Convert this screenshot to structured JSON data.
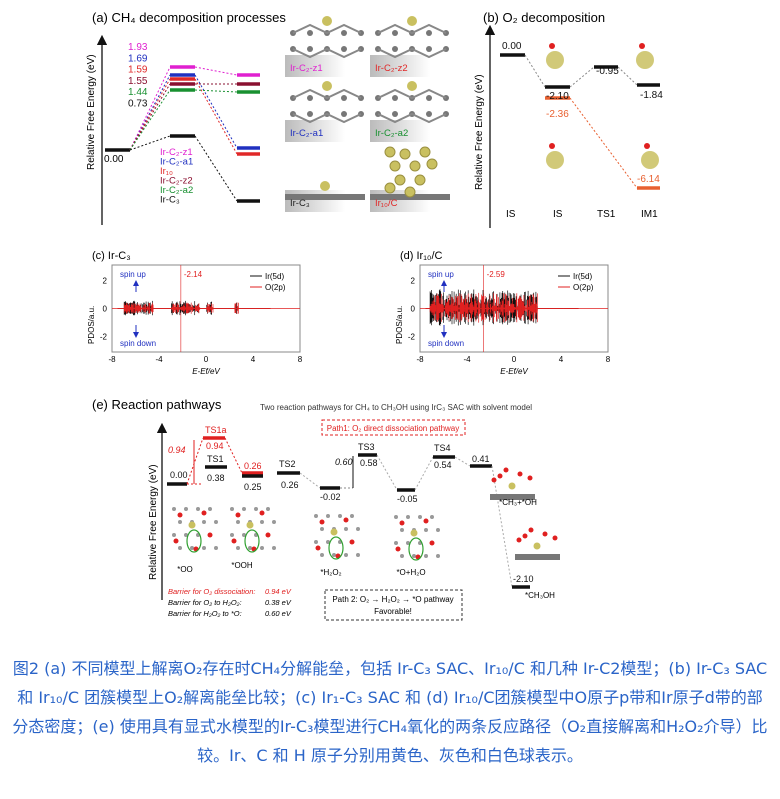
{
  "panel_a": {
    "title": "(a) CH₄ decomposition processes",
    "ylabel": "Relative Free Energy (eV)",
    "start_label": "0.00",
    "barriers": [
      {
        "value": "1.93",
        "color": "#e020d0"
      },
      {
        "value": "1.69",
        "color": "#2030c0"
      },
      {
        "value": "1.59",
        "color": "#e02828"
      },
      {
        "value": "1.55",
        "color": "#8a1030"
      },
      {
        "value": "1.44",
        "color": "#189030"
      },
      {
        "value": "0.73",
        "color": "#111111"
      }
    ],
    "legend": [
      {
        "label": "Ir-C₂-z1",
        "color": "#e020d0"
      },
      {
        "label": "Ir-C₂-a1",
        "color": "#2030c0"
      },
      {
        "label": "Ir₁₀",
        "color": "#e02828"
      },
      {
        "label": "Ir-C₂-z2",
        "color": "#8a1030"
      },
      {
        "label": "Ir-C₂-a2",
        "color": "#189030"
      },
      {
        "label": "Ir-C₃",
        "color": "#111111"
      }
    ],
    "structures": [
      {
        "label": "Ir-C₂-z1",
        "color": "#e020d0"
      },
      {
        "label": "Ir-C₂-z2",
        "color": "#e02828"
      },
      {
        "label": "Ir-C₂-a1",
        "color": "#2030c0"
      },
      {
        "label": "Ir-C₂-a2",
        "color": "#189030"
      },
      {
        "label": "Ir-C₃",
        "color": "#222222"
      },
      {
        "label": "Ir₁₀/C",
        "color": "#e02828"
      }
    ]
  },
  "panel_b": {
    "title": "(b) O₂ decomposition",
    "ylabel": "Relative Free Energy (eV)",
    "levels": [
      "0.00",
      "-2.10",
      "-2.36",
      "-0.95",
      "-1.84",
      "-6.14"
    ],
    "xlabels": [
      "IS",
      "IS",
      "TS1",
      "IM1"
    ]
  },
  "panel_c": {
    "title": "(c) Ir-C₃",
    "marker": "-2.14",
    "spin_up": "spin up",
    "spin_down": "spin down"
  },
  "panel_d": {
    "title": "(d) Ir₁₀/C",
    "marker": "-2.59",
    "spin_up": "spin up",
    "spin_down": "spin down"
  },
  "pdos_common": {
    "ylabel": "PDOS/a.u.",
    "xlabel": "E-Ef/eV",
    "xticks": [
      "-8",
      "-4",
      "0",
      "4",
      "8"
    ],
    "yticks": [
      "2",
      "0",
      "-2"
    ],
    "legend": [
      {
        "label": "Ir(5d)",
        "color": "#111111"
      },
      {
        "label": "O(2p)",
        "color": "#e02020"
      }
    ]
  },
  "panel_e": {
    "title": "(e) Reaction pathways",
    "subtitle": "Two reaction pathways for CH₄ to CH₃OH using IrC₃ SAC with solvent model",
    "path1": "Path1: O₂ direct dissociation pathway",
    "path2_line1": "Path 2: O₂ → H₂O₂ → *O pathway",
    "path2_line2": "Favorable!",
    "ylabel": "Relative Free Energy (eV)",
    "levels": {
      "start": "0.00",
      "ts1a_name": "TS1a",
      "ts1a": "0.94",
      "ts1a_barrier": "0.94",
      "ts1_name": "TS1",
      "ts1": "0.38",
      "ooh_red": "0.26",
      "ooh": "0.25",
      "ts2_name": "TS2",
      "ts2": "0.26",
      "h2o2": "-0.02",
      "ts3_name": "TS3",
      "ts3": "0.58",
      "ts3_barrier": "0.60",
      "o_h2o": "-0.05",
      "ts4_name": "TS4",
      "ts4": "0.54",
      "ch3_oh": "0.41",
      "ch3oh": "-2.10"
    },
    "species": [
      "*OO",
      "*OOH",
      "*H₂O₂",
      "*O+H₂O",
      "*CH₃+*OH",
      "*CH₃OH"
    ],
    "barriers": [
      {
        "label": "Barrier for O₂ dissociation:",
        "value": "0.94 eV",
        "color": "#e02020"
      },
      {
        "label": "Barrier for O₂ to H₂O₂:",
        "value": "0.38 eV",
        "color": "#222222"
      },
      {
        "label": "Barrier for H₂O₂ to *O:",
        "value": "0.60 eV",
        "color": "#222222"
      }
    ]
  },
  "caption": "图2 (a) 不同模型上解离O₂存在时CH₄分解能垒，包括 Ir-C₃ SAC、Ir₁₀/C 和几种 Ir-C2模型；(b) Ir-C₃ SAC 和 Ir₁₀/C 团簇模型上O₂解离能垒比较；(c) Ir₁-C₃ SAC 和 (d) Ir₁₀/C团簇模型中O原子p带和Ir原子d带的部分态密度；(e) 使用具有显式水模型的Ir-C₃模型进行CH₄氧化的两条反应路径（O₂直接解离和H₂O₂介导）比较。Ir、C 和 H 原子分别用黄色、灰色和白色球表示。"
}
